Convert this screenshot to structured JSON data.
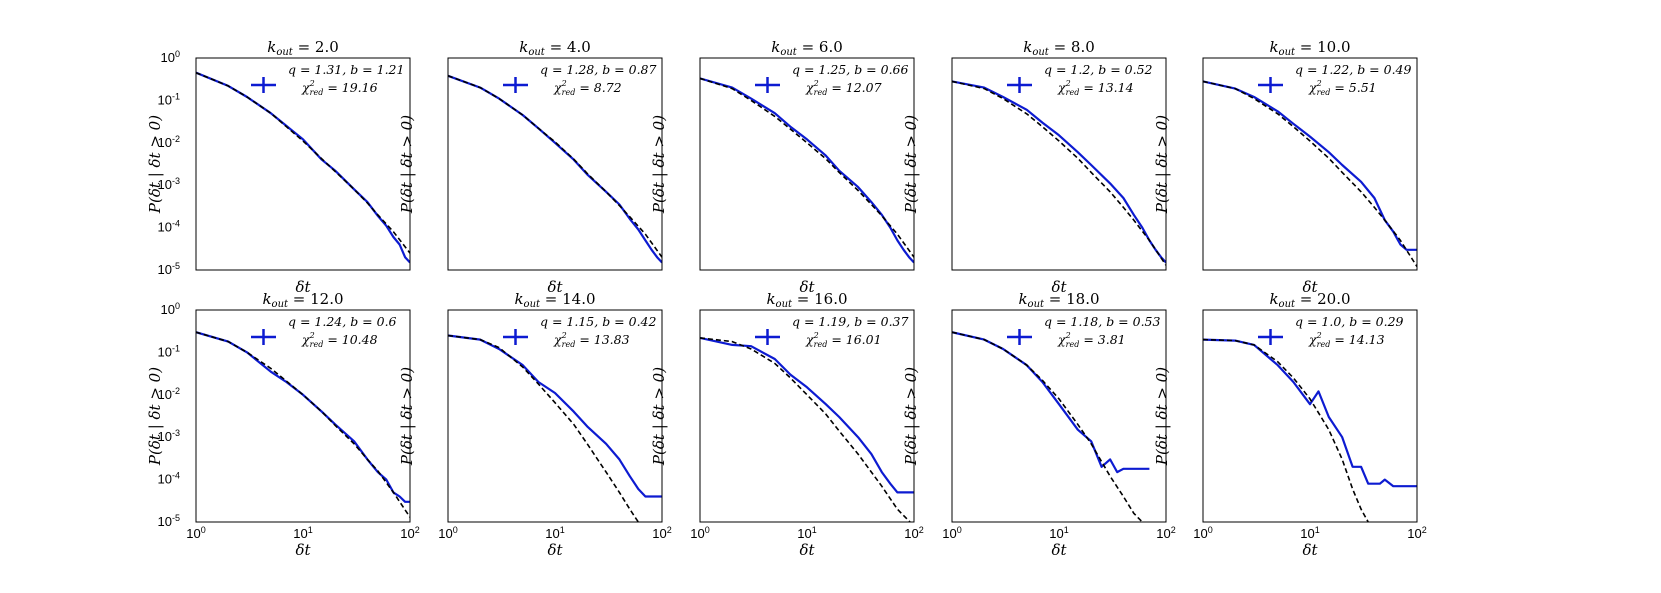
{
  "chart_data": [
    {
      "type": "line",
      "title": "k_out = 2.0",
      "title_main": "k",
      "title_sub": "out",
      "title_rest": " = 2.0",
      "xlabel": "δt",
      "ylabel": "P(δt | δt > 0)",
      "log_x": true,
      "log_y": true,
      "xlim": [
        1,
        100
      ],
      "ylim": [
        1e-05,
        1
      ],
      "grid": false,
      "legend": "top-right",
      "legend_line1": "q = 1.31, b = 1.21",
      "legend_line2": "χ²_red = 19.16",
      "legend_chi_main": "χ",
      "legend_chi_sup": "2",
      "legend_chi_sub": "red",
      "legend_chi_val": " = 19.16",
      "q": 1.31,
      "b": 1.21,
      "chi2_red": 19.16,
      "series": [
        {
          "kind": "data",
          "x": [
            1,
            2,
            3,
            5,
            7,
            10,
            15,
            20,
            30,
            40,
            50,
            60,
            70,
            80,
            90,
            100
          ],
          "y": [
            0.45,
            0.22,
            0.12,
            0.05,
            0.025,
            0.012,
            0.004,
            0.0022,
            0.0008,
            0.0004,
            0.00019,
            0.00011,
            6e-05,
            4e-05,
            2e-05,
            1.5e-05
          ]
        },
        {
          "kind": "fit",
          "x": [
            1,
            2,
            3,
            5,
            7,
            10,
            15,
            20,
            30,
            40,
            50,
            70,
            100
          ],
          "y": [
            0.45,
            0.22,
            0.12,
            0.05,
            0.024,
            0.011,
            0.0042,
            0.0021,
            0.0008,
            0.00038,
            0.0002,
            8e-05,
            2.5e-05
          ]
        }
      ]
    },
    {
      "type": "line",
      "title": "k_out = 4.0",
      "title_main": "k",
      "title_sub": "out",
      "title_rest": " = 4.0",
      "xlabel": "δt",
      "ylabel": "P(δt | δt > 0)",
      "log_x": true,
      "log_y": true,
      "xlim": [
        1,
        100
      ],
      "ylim": [
        1e-05,
        1
      ],
      "grid": false,
      "legend": "top-right",
      "legend_line1": "q = 1.28, b = 0.87",
      "legend_line2": "χ²_red = 8.72",
      "legend_chi_main": "χ",
      "legend_chi_sup": "2",
      "legend_chi_sub": "red",
      "legend_chi_val": " = 8.72",
      "q": 1.28,
      "b": 0.87,
      "chi2_red": 8.72,
      "series": [
        {
          "kind": "data",
          "x": [
            1,
            2,
            3,
            5,
            7,
            10,
            15,
            20,
            30,
            40,
            50,
            60,
            70,
            80,
            90,
            100
          ],
          "y": [
            0.38,
            0.2,
            0.11,
            0.045,
            0.022,
            0.01,
            0.004,
            0.0018,
            0.0007,
            0.00035,
            0.00016,
            9e-05,
            5e-05,
            3e-05,
            2e-05,
            1.5e-05
          ]
        },
        {
          "kind": "fit",
          "x": [
            1,
            2,
            3,
            5,
            7,
            10,
            15,
            20,
            30,
            40,
            50,
            70,
            100
          ],
          "y": [
            0.38,
            0.2,
            0.11,
            0.045,
            0.022,
            0.0105,
            0.0041,
            0.0019,
            0.0007,
            0.00033,
            0.00018,
            7e-05,
            2e-05
          ]
        }
      ]
    },
    {
      "type": "line",
      "title": "k_out = 6.0",
      "title_main": "k",
      "title_sub": "out",
      "title_rest": " = 6.0",
      "xlabel": "δt",
      "ylabel": "P(δt | δt > 0)",
      "log_x": true,
      "log_y": true,
      "xlim": [
        1,
        100
      ],
      "ylim": [
        1e-05,
        1
      ],
      "grid": false,
      "legend": "top-right",
      "legend_line1": "q = 1.25, b = 0.66",
      "legend_line2": "χ²_red = 12.07",
      "legend_chi_main": "χ",
      "legend_chi_sup": "2",
      "legend_chi_sub": "red",
      "legend_chi_val": " = 12.07",
      "q": 1.25,
      "b": 0.66,
      "chi2_red": 12.07,
      "series": [
        {
          "kind": "data",
          "x": [
            1,
            2,
            3,
            5,
            7,
            10,
            15,
            20,
            30,
            40,
            50,
            60,
            70,
            80,
            90,
            100
          ],
          "y": [
            0.33,
            0.2,
            0.11,
            0.05,
            0.024,
            0.012,
            0.005,
            0.0022,
            0.0009,
            0.0004,
            0.0002,
            0.0001,
            5e-05,
            3e-05,
            2e-05,
            1.5e-05
          ]
        },
        {
          "kind": "fit",
          "x": [
            1,
            2,
            3,
            5,
            7,
            10,
            15,
            20,
            30,
            40,
            50,
            70,
            100
          ],
          "y": [
            0.33,
            0.19,
            0.1,
            0.042,
            0.021,
            0.01,
            0.0042,
            0.002,
            0.00075,
            0.00035,
            0.00019,
            7e-05,
            2e-05
          ]
        }
      ]
    },
    {
      "type": "line",
      "title": "k_out = 8.0",
      "title_main": "k",
      "title_sub": "out",
      "title_rest": " = 8.0",
      "xlabel": "δt",
      "ylabel": "P(δt | δt > 0)",
      "log_x": true,
      "log_y": true,
      "xlim": [
        1,
        100
      ],
      "ylim": [
        1e-05,
        1
      ],
      "grid": false,
      "legend": "top-right",
      "legend_line1": "q = 1.2, b = 0.52",
      "legend_line2": "χ²_red = 13.14",
      "legend_chi_main": "χ",
      "legend_chi_sup": "2",
      "legend_chi_sub": "red",
      "legend_chi_val": " = 13.14",
      "q": 1.2,
      "b": 0.52,
      "chi2_red": 13.14,
      "series": [
        {
          "kind": "data",
          "x": [
            1,
            2,
            3,
            5,
            7,
            10,
            15,
            20,
            30,
            40,
            50,
            60,
            70,
            80,
            90,
            100
          ],
          "y": [
            0.28,
            0.2,
            0.12,
            0.06,
            0.03,
            0.015,
            0.006,
            0.003,
            0.0011,
            0.0005,
            0.0002,
            0.0001,
            5e-05,
            3e-05,
            2e-05,
            1.5e-05
          ]
        },
        {
          "kind": "fit",
          "x": [
            1,
            2,
            3,
            5,
            7,
            10,
            15,
            20,
            30,
            40,
            50,
            70,
            100
          ],
          "y": [
            0.28,
            0.19,
            0.11,
            0.048,
            0.024,
            0.011,
            0.0043,
            0.002,
            0.0007,
            0.0003,
            0.00015,
            5e-05,
            1.3e-05
          ]
        }
      ]
    },
    {
      "type": "line",
      "title": "k_out = 10.0",
      "title_main": "k",
      "title_sub": "out",
      "title_rest": " = 10.0",
      "xlabel": "δt",
      "ylabel": "P(δt | δt > 0)",
      "log_x": true,
      "log_y": true,
      "xlim": [
        1,
        100
      ],
      "ylim": [
        1e-05,
        1
      ],
      "grid": false,
      "legend": "top-right",
      "legend_line1": "q = 1.22, b = 0.49",
      "legend_line2": "χ²_red = 5.51",
      "legend_chi_main": "χ",
      "legend_chi_sup": "2",
      "legend_chi_sub": "red",
      "legend_chi_val": " = 5.51",
      "q": 1.22,
      "b": 0.49,
      "chi2_red": 5.51,
      "series": [
        {
          "kind": "data",
          "x": [
            1,
            2,
            3,
            5,
            7,
            10,
            15,
            20,
            30,
            40,
            50,
            60,
            70,
            80,
            90,
            100
          ],
          "y": [
            0.28,
            0.19,
            0.12,
            0.055,
            0.028,
            0.014,
            0.006,
            0.003,
            0.0012,
            0.0005,
            0.00015,
            8e-05,
            4e-05,
            3e-05,
            3e-05,
            3e-05
          ]
        },
        {
          "kind": "fit",
          "x": [
            1,
            2,
            3,
            5,
            7,
            10,
            15,
            20,
            30,
            40,
            50,
            70,
            100
          ],
          "y": [
            0.28,
            0.19,
            0.11,
            0.048,
            0.024,
            0.011,
            0.0043,
            0.002,
            0.0007,
            0.0003,
            0.00015,
            5e-05,
            1.2e-05
          ]
        }
      ]
    },
    {
      "type": "line",
      "title": "k_out = 12.0",
      "title_main": "k",
      "title_sub": "out",
      "title_rest": " = 12.0",
      "xlabel": "δt",
      "ylabel": "P(δt | δt > 0)",
      "log_x": true,
      "log_y": true,
      "xlim": [
        1,
        100
      ],
      "ylim": [
        1e-05,
        1
      ],
      "grid": false,
      "legend": "top-right",
      "legend_line1": "q = 1.24, b = 0.6",
      "legend_line2": "χ²_red = 10.48",
      "legend_chi_main": "χ",
      "legend_chi_sup": "2",
      "legend_chi_sub": "red",
      "legend_chi_val": " = 10.48",
      "q": 1.24,
      "b": 0.6,
      "chi2_red": 10.48,
      "series": [
        {
          "kind": "data",
          "x": [
            1,
            2,
            3,
            5,
            7,
            10,
            15,
            20,
            30,
            40,
            50,
            60,
            70,
            80,
            90,
            100
          ],
          "y": [
            0.3,
            0.18,
            0.1,
            0.035,
            0.02,
            0.01,
            0.004,
            0.002,
            0.0008,
            0.0003,
            0.00015,
            0.0001,
            5e-05,
            4e-05,
            3e-05,
            3e-05
          ]
        },
        {
          "kind": "fit",
          "x": [
            1,
            2,
            3,
            5,
            7,
            10,
            15,
            20,
            30,
            40,
            50,
            70,
            100
          ],
          "y": [
            0.3,
            0.18,
            0.1,
            0.042,
            0.021,
            0.01,
            0.004,
            0.0019,
            0.0007,
            0.0003,
            0.00016,
            5e-05,
            1.3e-05
          ]
        }
      ]
    },
    {
      "type": "line",
      "title": "k_out = 14.0",
      "title_main": "k",
      "title_sub": "out",
      "title_rest": " = 14.0",
      "xlabel": "δt",
      "ylabel": "P(δt | δt > 0)",
      "log_x": true,
      "log_y": true,
      "xlim": [
        1,
        100
      ],
      "ylim": [
        1e-05,
        1
      ],
      "grid": false,
      "legend": "top-right",
      "legend_line1": "q = 1.15, b = 0.42",
      "legend_line2": "χ²_red = 13.83",
      "legend_chi_main": "χ",
      "legend_chi_sup": "2",
      "legend_chi_sub": "red",
      "legend_chi_val": " = 13.83",
      "q": 1.15,
      "b": 0.42,
      "chi2_red": 13.83,
      "series": [
        {
          "kind": "data",
          "x": [
            1,
            2,
            3,
            5,
            7,
            10,
            15,
            20,
            30,
            40,
            50,
            60,
            70,
            80,
            90,
            100
          ],
          "y": [
            0.25,
            0.2,
            0.12,
            0.05,
            0.02,
            0.011,
            0.004,
            0.0018,
            0.0007,
            0.0003,
            0.00012,
            6e-05,
            4e-05,
            4e-05,
            4e-05,
            4e-05
          ]
        },
        {
          "kind": "fit",
          "x": [
            1,
            2,
            3,
            5,
            7,
            10,
            15,
            20,
            30,
            40,
            50,
            60
          ],
          "y": [
            0.25,
            0.2,
            0.13,
            0.045,
            0.018,
            0.0065,
            0.002,
            0.0007,
            0.00015,
            5e-05,
            2e-05,
            1e-05
          ]
        }
      ]
    },
    {
      "type": "line",
      "title": "k_out = 16.0",
      "title_main": "k",
      "title_sub": "out",
      "title_rest": " = 16.0",
      "xlabel": "δt",
      "ylabel": "P(δt | δt > 0)",
      "log_x": true,
      "log_y": true,
      "xlim": [
        1,
        100
      ],
      "ylim": [
        1e-05,
        1
      ],
      "grid": false,
      "legend": "top-right",
      "legend_line1": "q = 1.19, b = 0.37",
      "legend_line2": "χ²_red = 16.01",
      "legend_chi_main": "χ",
      "legend_chi_sup": "2",
      "legend_chi_sub": "red",
      "legend_chi_val": " = 16.01",
      "q": 1.19,
      "b": 0.37,
      "chi2_red": 16.01,
      "series": [
        {
          "kind": "data",
          "x": [
            1,
            2,
            3,
            5,
            7,
            10,
            15,
            20,
            30,
            40,
            50,
            60,
            70,
            80,
            90,
            100
          ],
          "y": [
            0.22,
            0.15,
            0.14,
            0.07,
            0.03,
            0.015,
            0.006,
            0.003,
            0.001,
            0.0004,
            0.00015,
            8e-05,
            5e-05,
            5e-05,
            5e-05,
            5e-05
          ]
        },
        {
          "kind": "fit",
          "x": [
            1,
            2,
            3,
            5,
            7,
            10,
            15,
            20,
            30,
            40,
            50,
            70,
            100
          ],
          "y": [
            0.22,
            0.18,
            0.12,
            0.055,
            0.025,
            0.01,
            0.0035,
            0.0014,
            0.0004,
            0.00015,
            7e-05,
            2e-05,
            8e-06
          ]
        }
      ]
    },
    {
      "type": "line",
      "title": "k_out = 18.0",
      "title_main": "k",
      "title_sub": "out",
      "title_rest": " = 18.0",
      "xlabel": "δt",
      "ylabel": "P(δt | δt > 0)",
      "log_x": true,
      "log_y": true,
      "xlim": [
        1,
        100
      ],
      "ylim": [
        1e-05,
        1
      ],
      "grid": false,
      "legend": "top-right",
      "legend_line1": "q = 1.18, b = 0.53",
      "legend_line2": "χ²_red = 3.81",
      "legend_chi_main": "χ",
      "legend_chi_sup": "2",
      "legend_chi_sub": "red",
      "legend_chi_val": " = 3.81",
      "q": 1.18,
      "b": 0.53,
      "chi2_red": 3.81,
      "series": [
        {
          "kind": "data",
          "x": [
            1,
            2,
            3,
            5,
            7,
            10,
            15,
            20,
            25,
            30,
            35,
            40,
            45,
            50,
            60,
            70
          ],
          "y": [
            0.3,
            0.2,
            0.12,
            0.05,
            0.02,
            0.006,
            0.0015,
            0.0008,
            0.0002,
            0.0003,
            0.00015,
            0.00018,
            0.00018,
            0.00018,
            0.00018,
            0.00018
          ]
        },
        {
          "kind": "fit",
          "x": [
            1,
            2,
            3,
            5,
            7,
            10,
            15,
            20,
            30,
            40,
            50,
            60
          ],
          "y": [
            0.3,
            0.2,
            0.12,
            0.05,
            0.022,
            0.008,
            0.002,
            0.0007,
            0.00012,
            4e-05,
            1.6e-05,
            1e-05
          ]
        }
      ]
    },
    {
      "type": "line",
      "title": "k_out = 20.0",
      "title_main": "k",
      "title_sub": "out",
      "title_rest": " = 20.0",
      "xlabel": "δt",
      "ylabel": "P(δt | δt > 0)",
      "log_x": true,
      "log_y": true,
      "xlim": [
        1,
        100
      ],
      "ylim": [
        1e-05,
        1
      ],
      "grid": false,
      "legend": "top-right",
      "legend_line1": "q = 1.0, b = 0.29",
      "legend_line2": "χ²_red = 14.13",
      "legend_chi_main": "χ",
      "legend_chi_sup": "2",
      "legend_chi_sub": "red",
      "legend_chi_val": " = 14.13",
      "q": 1.0,
      "b": 0.29,
      "chi2_red": 14.13,
      "series": [
        {
          "kind": "data",
          "x": [
            1,
            2,
            3,
            5,
            7,
            10,
            12,
            15,
            20,
            25,
            30,
            35,
            40,
            45,
            50,
            60,
            70,
            80,
            90,
            100
          ],
          "y": [
            0.2,
            0.19,
            0.15,
            0.05,
            0.02,
            0.006,
            0.012,
            0.003,
            0.001,
            0.0002,
            0.0002,
            8e-05,
            8e-05,
            8e-05,
            0.0001,
            7e-05,
            7e-05,
            7e-05,
            7e-05,
            7e-05
          ]
        },
        {
          "kind": "fit",
          "x": [
            1,
            2,
            3,
            5,
            7,
            10,
            15,
            20,
            25,
            30,
            35
          ],
          "y": [
            0.2,
            0.19,
            0.15,
            0.06,
            0.025,
            0.008,
            0.0015,
            0.0003,
            6e-05,
            2e-05,
            1e-05
          ]
        }
      ]
    }
  ],
  "styles": {
    "data_color": "#0d1bd1",
    "fit_color": "#000000",
    "frame_color": "#000000",
    "background": "#ffffff"
  }
}
